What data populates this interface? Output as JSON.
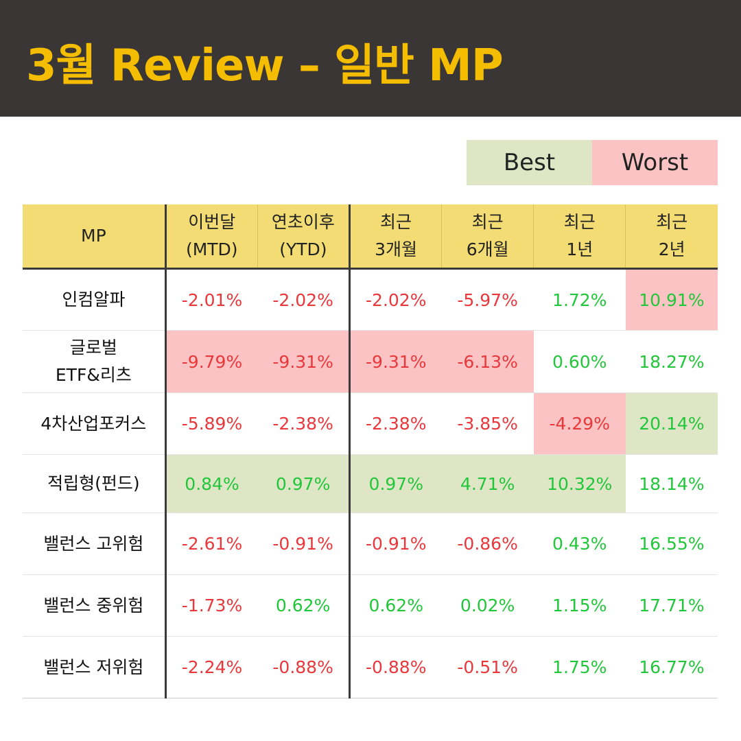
{
  "title": "3월 Review – 일반 MP",
  "legend": {
    "best": "Best",
    "worst": "Worst"
  },
  "colors": {
    "header_bg": "#3a3636",
    "title": "#f5bd00",
    "table_header_bg": "#f3dc73",
    "best_bg": "#dfe6c6",
    "worst_bg": "#fbc3c3",
    "negative": "#e8383c",
    "positive": "#22c63a"
  },
  "chart_data": {
    "type": "table",
    "columns": [
      [
        "MP"
      ],
      [
        "이번달",
        "(MTD)"
      ],
      [
        "연초이후",
        "(YTD)"
      ],
      [
        "최근",
        "3개월"
      ],
      [
        "최근",
        "6개월"
      ],
      [
        "최근",
        "1년"
      ],
      [
        "최근",
        "2년"
      ]
    ],
    "rows": [
      {
        "name": [
          "인컴알파"
        ],
        "values": [
          "-2.01%",
          "-2.02%",
          "-2.02%",
          "-5.97%",
          "1.72%",
          "10.91%"
        ],
        "highlight": [
          "",
          "",
          "",
          "",
          "",
          "worst"
        ]
      },
      {
        "name": [
          "글로벌",
          "ETF&리츠"
        ],
        "values": [
          "-9.79%",
          "-9.31%",
          "-9.31%",
          "-6.13%",
          "0.60%",
          "18.27%"
        ],
        "highlight": [
          "worst",
          "worst",
          "worst",
          "worst",
          "",
          ""
        ]
      },
      {
        "name": [
          "4차산업포커스"
        ],
        "values": [
          "-5.89%",
          "-2.38%",
          "-2.38%",
          "-3.85%",
          "-4.29%",
          "20.14%"
        ],
        "highlight": [
          "",
          "",
          "",
          "",
          "worst",
          "best"
        ]
      },
      {
        "name": [
          "적립형(펀드)"
        ],
        "values": [
          "0.84%",
          "0.97%",
          "0.97%",
          "4.71%",
          "10.32%",
          "18.14%"
        ],
        "highlight": [
          "best",
          "best",
          "best",
          "best",
          "best",
          ""
        ]
      },
      {
        "name": [
          "밸런스 고위험"
        ],
        "values": [
          "-2.61%",
          "-0.91%",
          "-0.91%",
          "-0.86%",
          "0.43%",
          "16.55%"
        ],
        "highlight": [
          "",
          "",
          "",
          "",
          "",
          ""
        ]
      },
      {
        "name": [
          "밸런스 중위험"
        ],
        "values": [
          "-1.73%",
          "0.62%",
          "0.62%",
          "0.02%",
          "1.15%",
          "17.71%"
        ],
        "highlight": [
          "",
          "",
          "",
          "",
          "",
          ""
        ]
      },
      {
        "name": [
          "밸런스 저위험"
        ],
        "values": [
          "-2.24%",
          "-0.88%",
          "-0.88%",
          "-0.51%",
          "1.75%",
          "16.77%"
        ],
        "highlight": [
          "",
          "",
          "",
          "",
          "",
          ""
        ]
      }
    ]
  }
}
